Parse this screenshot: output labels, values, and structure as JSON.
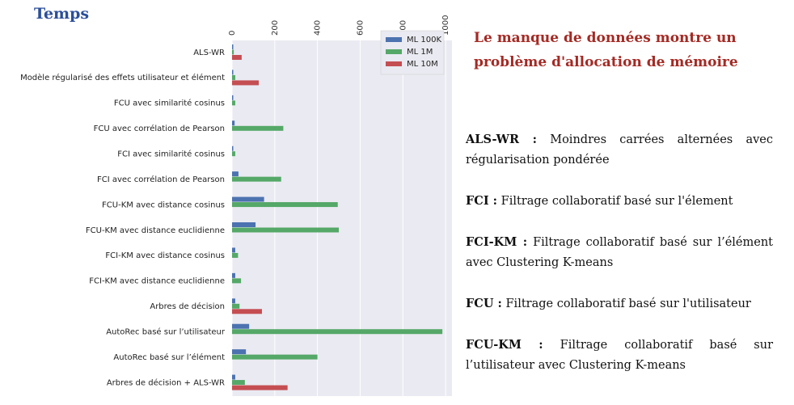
{
  "title": "Temps",
  "note": "Le manque de données montre un problème d'allocation de mémoire",
  "definitions": [
    {
      "term": "ALS-WR :",
      "text": "Moindres carrées alternées avec régularisation pondérée"
    },
    {
      "term": "FCI :",
      "text": "Filtrage collaboratif basé sur l'élement"
    },
    {
      "term": "FCI-KM :",
      "text": "Filtrage collaboratif basé sur l’élément avec Clustering K-means"
    },
    {
      "term": "FCU :",
      "text": "Filtrage collaboratif basé sur l'utilisateur"
    },
    {
      "term": "FCU-KM :",
      "text": "Filtrage collaboratif basé sur l’utilisateur avec Clustering K-means"
    }
  ],
  "colors": {
    "ML 100K": "#4c72b0",
    "ML 1M": "#55a868",
    "ML 10M": "#c44e52",
    "plot_bg": "#eaeaf2",
    "grid": "#ffffff"
  },
  "chart_data": {
    "type": "bar",
    "orientation": "horizontal",
    "categories": [
      "ALS-WR",
      "Modèle régularisé des effets utilisateur et élément",
      "FCU avec similarité cosinus",
      "FCU avec corrélation de Pearson",
      "FCI avec similarité cosinus",
      "FCI avec corrélation de Pearson",
      "FCU-KM avec distance cosinus",
      "FCU-KM avec distance euclidienne",
      "FCI-KM avec distance cosinus",
      "FCI-KM avec distance euclidienne",
      "Arbres de décision",
      "AutoRec basé sur l’utilisateur",
      "AutoRec basé sur l’élément",
      "Arbres de décision + ALS-WR"
    ],
    "series": [
      {
        "name": "ML 100K",
        "values": [
          3,
          3,
          2,
          12,
          2,
          30,
          150,
          110,
          15,
          15,
          15,
          80,
          65,
          15
        ]
      },
      {
        "name": "ML 1M",
        "values": [
          8,
          15,
          15,
          240,
          15,
          230,
          495,
          500,
          28,
          42,
          35,
          985,
          400,
          60
        ]
      },
      {
        "name": "ML 10M",
        "values": [
          45,
          125,
          null,
          null,
          null,
          null,
          null,
          null,
          null,
          null,
          140,
          null,
          null,
          260
        ]
      }
    ],
    "xticks": [
      0,
      200,
      400,
      600,
      800,
      1000
    ],
    "xlim": [
      0,
      1030
    ],
    "legend": "top-right",
    "grid": true
  }
}
